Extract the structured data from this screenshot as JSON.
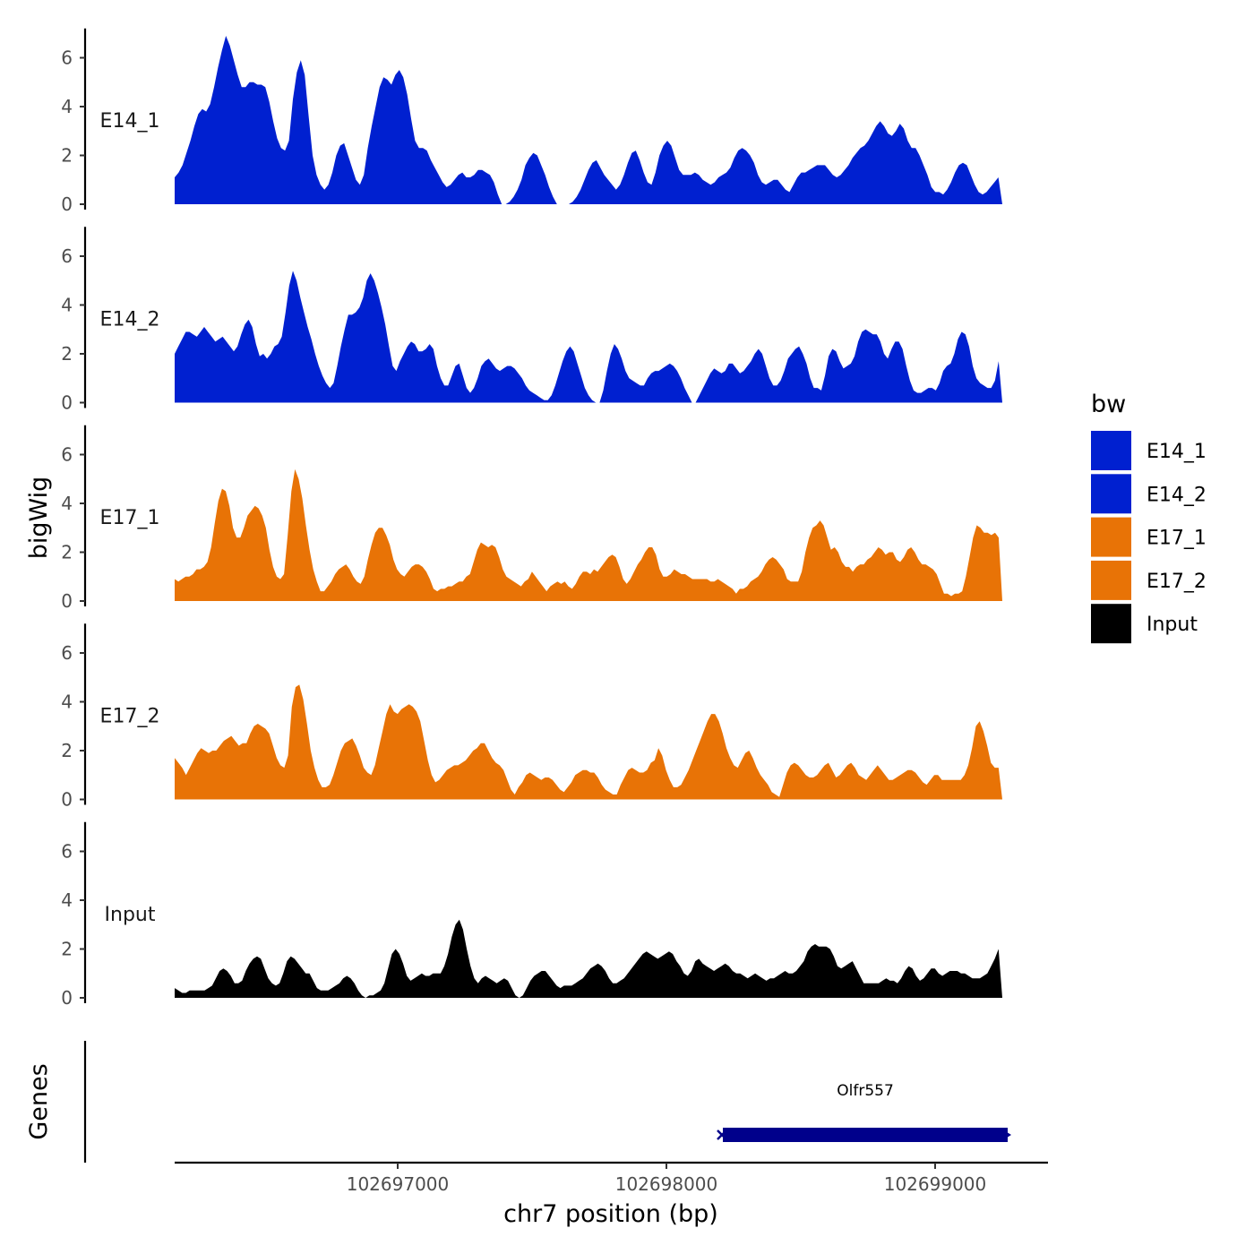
{
  "chart_data": {
    "type": "area",
    "ylabel": "bigWig",
    "xlabel": "chr7 position (bp)",
    "ylim": [
      0,
      7.2
    ],
    "y_ticks": [
      0,
      2,
      4,
      6
    ],
    "xlim": [
      102696170,
      102699420
    ],
    "x_range_data": [
      102696170,
      102699250
    ],
    "x_ticks": [
      102697000,
      102698000,
      102699000
    ],
    "x_tick_labels": [
      "102697000",
      "102698000",
      "102699000"
    ],
    "tracks": [
      {
        "name": "E14_1",
        "label": "E14_1",
        "color": "#0020D0",
        "values": [
          1.1,
          1.3,
          1.6,
          2.1,
          2.6,
          3.2,
          3.7,
          3.9,
          3.8,
          4.1,
          4.8,
          5.6,
          6.3,
          6.9,
          6.5,
          5.9,
          5.3,
          4.8,
          4.8,
          5.0,
          5.0,
          4.9,
          4.9,
          4.8,
          4.2,
          3.4,
          2.7,
          2.3,
          2.2,
          2.6,
          4.3,
          5.4,
          5.9,
          5.3,
          3.6,
          2.0,
          1.2,
          0.8,
          0.6,
          0.8,
          1.3,
          2.0,
          2.4,
          2.5,
          2.0,
          1.5,
          1.0,
          0.8,
          1.2,
          2.3,
          3.2,
          4.0,
          4.8,
          5.2,
          5.1,
          4.9,
          5.3,
          5.5,
          5.2,
          4.5,
          3.5,
          2.6,
          2.3,
          2.3,
          2.2,
          1.8,
          1.5,
          1.2,
          0.9,
          0.7,
          0.8,
          1.0,
          1.2,
          1.3,
          1.1,
          1.1,
          1.2,
          1.4,
          1.4,
          1.3,
          1.2,
          0.9,
          0.4,
          0.0,
          0.0,
          0.1,
          0.3,
          0.6,
          1.0,
          1.6,
          1.9,
          2.1,
          2.0,
          1.6,
          1.2,
          0.7,
          0.3,
          0.0,
          0.0,
          0.0,
          0.0,
          0.1,
          0.3,
          0.6,
          1.0,
          1.4,
          1.7,
          1.8,
          1.5,
          1.2,
          1.0,
          0.8,
          0.6,
          0.8,
          1.2,
          1.7,
          2.1,
          2.2,
          1.8,
          1.3,
          0.9,
          0.8,
          1.3,
          2.0,
          2.4,
          2.6,
          2.4,
          1.9,
          1.4,
          1.2,
          1.2,
          1.2,
          1.3,
          1.2,
          1.0,
          0.9,
          0.8,
          0.9,
          1.1,
          1.2,
          1.3,
          1.5,
          1.9,
          2.2,
          2.3,
          2.2,
          2.0,
          1.7,
          1.2,
          0.9,
          0.8,
          0.9,
          1.0,
          1.0,
          0.8,
          0.6,
          0.5,
          0.8,
          1.1,
          1.3,
          1.3,
          1.4,
          1.5,
          1.6,
          1.6,
          1.6,
          1.4,
          1.2,
          1.1,
          1.2,
          1.4,
          1.6,
          1.9,
          2.1,
          2.3,
          2.4,
          2.6,
          2.9,
          3.2,
          3.4,
          3.2,
          2.9,
          2.8,
          3.0,
          3.3,
          3.1,
          2.6,
          2.3,
          2.3,
          2.0,
          1.6,
          1.2,
          0.7,
          0.5,
          0.5,
          0.4,
          0.6,
          0.9,
          1.3,
          1.6,
          1.7,
          1.6,
          1.2,
          0.8,
          0.5,
          0.4,
          0.5,
          0.7,
          0.9,
          1.1,
          0.0
        ]
      },
      {
        "name": "E14_2",
        "label": "E14_2",
        "color": "#0020D0",
        "values": [
          2.0,
          2.3,
          2.6,
          2.9,
          2.9,
          2.8,
          2.7,
          2.9,
          3.1,
          2.9,
          2.7,
          2.5,
          2.6,
          2.7,
          2.5,
          2.3,
          2.1,
          2.3,
          2.8,
          3.2,
          3.4,
          3.1,
          2.4,
          1.9,
          2.0,
          1.8,
          2.0,
          2.3,
          2.4,
          2.7,
          3.7,
          4.8,
          5.4,
          5.0,
          4.3,
          3.7,
          3.1,
          2.6,
          2.0,
          1.5,
          1.1,
          0.8,
          0.6,
          0.8,
          1.5,
          2.3,
          3.0,
          3.6,
          3.6,
          3.7,
          3.9,
          4.3,
          5.0,
          5.3,
          5.0,
          4.5,
          3.9,
          3.2,
          2.3,
          1.5,
          1.3,
          1.7,
          2.0,
          2.3,
          2.5,
          2.4,
          2.1,
          2.1,
          2.2,
          2.4,
          2.2,
          1.5,
          1.0,
          0.7,
          0.7,
          1.1,
          1.5,
          1.6,
          1.1,
          0.6,
          0.4,
          0.6,
          1.0,
          1.5,
          1.7,
          1.8,
          1.6,
          1.4,
          1.3,
          1.4,
          1.5,
          1.5,
          1.4,
          1.2,
          1.0,
          0.7,
          0.5,
          0.4,
          0.3,
          0.2,
          0.1,
          0.1,
          0.3,
          0.7,
          1.2,
          1.7,
          2.1,
          2.3,
          2.1,
          1.6,
          1.1,
          0.6,
          0.3,
          0.1,
          0.0,
          0.0,
          0.5,
          1.3,
          2.0,
          2.4,
          2.2,
          1.8,
          1.3,
          1.0,
          0.9,
          0.8,
          0.7,
          0.7,
          1.0,
          1.2,
          1.3,
          1.3,
          1.4,
          1.5,
          1.6,
          1.5,
          1.3,
          1.0,
          0.6,
          0.3,
          0.0,
          0.0,
          0.3,
          0.6,
          0.9,
          1.2,
          1.4,
          1.3,
          1.2,
          1.3,
          1.6,
          1.6,
          1.4,
          1.2,
          1.3,
          1.5,
          1.7,
          2.0,
          2.2,
          2.0,
          1.5,
          1.0,
          0.7,
          0.7,
          0.9,
          1.3,
          1.8,
          2.0,
          2.2,
          2.3,
          2.0,
          1.6,
          1.0,
          0.6,
          0.6,
          0.5,
          1.1,
          1.9,
          2.2,
          2.1,
          1.7,
          1.4,
          1.5,
          1.6,
          1.9,
          2.5,
          2.9,
          3.0,
          2.9,
          2.8,
          2.8,
          2.5,
          2.0,
          1.8,
          2.2,
          2.5,
          2.5,
          2.2,
          1.5,
          0.9,
          0.5,
          0.4,
          0.4,
          0.5,
          0.6,
          0.6,
          0.5,
          0.8,
          1.3,
          1.5,
          1.6,
          2.0,
          2.6,
          2.9,
          2.8,
          2.3,
          1.5,
          1.0,
          0.8,
          0.7,
          0.6,
          0.6,
          0.9,
          1.7,
          0.0
        ]
      },
      {
        "name": "E17_1",
        "label": "E17_1",
        "color": "#E87306",
        "values": [
          0.9,
          0.8,
          0.9,
          1.0,
          1.0,
          1.1,
          1.3,
          1.3,
          1.4,
          1.6,
          2.2,
          3.2,
          4.1,
          4.6,
          4.5,
          3.9,
          3.0,
          2.6,
          2.6,
          3.0,
          3.5,
          3.7,
          3.9,
          3.8,
          3.5,
          3.0,
          2.1,
          1.4,
          1.0,
          0.9,
          1.1,
          2.7,
          4.5,
          5.4,
          5.0,
          4.2,
          3.1,
          2.1,
          1.3,
          0.8,
          0.4,
          0.4,
          0.6,
          0.8,
          1.1,
          1.3,
          1.4,
          1.5,
          1.3,
          1.0,
          0.8,
          0.7,
          1.0,
          1.7,
          2.3,
          2.8,
          3.0,
          3.0,
          2.7,
          2.3,
          1.7,
          1.3,
          1.1,
          1.0,
          1.2,
          1.4,
          1.5,
          1.5,
          1.4,
          1.2,
          0.9,
          0.5,
          0.4,
          0.5,
          0.5,
          0.6,
          0.6,
          0.7,
          0.8,
          0.8,
          1.0,
          1.1,
          1.6,
          2.1,
          2.4,
          2.3,
          2.2,
          2.3,
          2.2,
          1.8,
          1.3,
          1.0,
          0.9,
          0.8,
          0.7,
          0.6,
          0.8,
          0.9,
          1.2,
          1.0,
          0.8,
          0.6,
          0.4,
          0.6,
          0.7,
          0.8,
          0.7,
          0.8,
          0.6,
          0.5,
          0.7,
          1.0,
          1.2,
          1.2,
          1.1,
          1.3,
          1.2,
          1.4,
          1.6,
          1.8,
          1.9,
          1.8,
          1.4,
          0.9,
          0.7,
          0.9,
          1.2,
          1.5,
          1.7,
          2.0,
          2.2,
          2.2,
          1.9,
          1.3,
          1.0,
          1.0,
          1.1,
          1.3,
          1.2,
          1.1,
          1.1,
          1.0,
          0.9,
          0.9,
          0.9,
          0.9,
          0.9,
          0.8,
          0.8,
          0.9,
          0.8,
          0.7,
          0.6,
          0.5,
          0.3,
          0.5,
          0.5,
          0.6,
          0.8,
          0.9,
          1.0,
          1.2,
          1.5,
          1.7,
          1.8,
          1.7,
          1.5,
          1.3,
          0.9,
          0.8,
          0.8,
          0.8,
          1.2,
          2.0,
          2.6,
          3.0,
          3.1,
          3.3,
          3.1,
          2.6,
          2.1,
          2.2,
          2.0,
          1.6,
          1.4,
          1.4,
          1.2,
          1.4,
          1.5,
          1.5,
          1.7,
          1.8,
          2.0,
          2.2,
          2.1,
          1.9,
          2.0,
          2.0,
          1.7,
          1.6,
          1.8,
          2.1,
          2.2,
          2.0,
          1.7,
          1.5,
          1.5,
          1.4,
          1.3,
          1.1,
          0.7,
          0.3,
          0.3,
          0.2,
          0.3,
          0.3,
          0.4,
          1.0,
          1.8,
          2.6,
          3.1,
          3.0,
          2.8,
          2.8,
          2.7,
          2.8,
          2.6,
          0.0
        ]
      },
      {
        "name": "E17_2",
        "label": "E17_2",
        "color": "#E87306",
        "values": [
          1.7,
          1.5,
          1.3,
          1.0,
          1.3,
          1.6,
          1.9,
          2.1,
          2.0,
          1.9,
          2.0,
          2.0,
          2.2,
          2.4,
          2.5,
          2.6,
          2.4,
          2.2,
          2.3,
          2.3,
          2.7,
          3.0,
          3.1,
          3.0,
          2.9,
          2.7,
          2.2,
          1.7,
          1.4,
          1.3,
          1.8,
          3.8,
          4.6,
          4.7,
          4.1,
          3.1,
          2.0,
          1.3,
          0.8,
          0.5,
          0.5,
          0.6,
          1.0,
          1.5,
          2.0,
          2.3,
          2.4,
          2.5,
          2.2,
          1.8,
          1.3,
          1.1,
          1.0,
          1.4,
          2.1,
          2.8,
          3.5,
          3.9,
          3.6,
          3.5,
          3.7,
          3.8,
          3.9,
          3.8,
          3.6,
          3.2,
          2.4,
          1.6,
          1.0,
          0.7,
          0.8,
          1.0,
          1.2,
          1.3,
          1.4,
          1.4,
          1.5,
          1.6,
          1.8,
          2.0,
          2.1,
          2.3,
          2.3,
          2.0,
          1.7,
          1.5,
          1.4,
          1.2,
          0.8,
          0.4,
          0.2,
          0.5,
          0.7,
          1.0,
          1.1,
          1.0,
          0.9,
          0.8,
          0.9,
          0.9,
          0.8,
          0.6,
          0.4,
          0.3,
          0.5,
          0.7,
          1.0,
          1.1,
          1.2,
          1.2,
          1.1,
          1.1,
          0.9,
          0.6,
          0.4,
          0.3,
          0.2,
          0.2,
          0.6,
          0.9,
          1.2,
          1.3,
          1.2,
          1.1,
          1.1,
          1.2,
          1.5,
          1.6,
          2.1,
          1.8,
          1.2,
          0.8,
          0.5,
          0.5,
          0.6,
          0.9,
          1.2,
          1.6,
          2.0,
          2.4,
          2.8,
          3.2,
          3.5,
          3.5,
          3.2,
          2.7,
          2.1,
          1.7,
          1.4,
          1.3,
          1.6,
          1.9,
          2.0,
          1.7,
          1.3,
          1.0,
          0.8,
          0.6,
          0.3,
          0.2,
          0.1,
          0.6,
          1.1,
          1.4,
          1.5,
          1.4,
          1.2,
          1.0,
          0.9,
          0.9,
          1.0,
          1.2,
          1.4,
          1.5,
          1.2,
          0.9,
          1.0,
          1.2,
          1.4,
          1.5,
          1.3,
          1.0,
          0.9,
          0.8,
          1.0,
          1.2,
          1.4,
          1.2,
          1.0,
          0.8,
          0.8,
          0.9,
          1.0,
          1.1,
          1.2,
          1.2,
          1.1,
          0.9,
          0.7,
          0.6,
          0.8,
          1.0,
          1.0,
          0.8,
          0.8,
          0.8,
          0.8,
          0.8,
          0.8,
          1.0,
          1.4,
          2.1,
          3.0,
          3.2,
          2.8,
          2.2,
          1.5,
          1.3,
          1.3,
          0.0
        ]
      },
      {
        "name": "Input",
        "label": "Input",
        "color": "#000000",
        "values": [
          0.4,
          0.3,
          0.2,
          0.2,
          0.3,
          0.3,
          0.3,
          0.3,
          0.3,
          0.4,
          0.5,
          0.8,
          1.1,
          1.2,
          1.1,
          0.9,
          0.6,
          0.6,
          0.7,
          1.1,
          1.4,
          1.6,
          1.7,
          1.6,
          1.2,
          0.8,
          0.6,
          0.5,
          0.6,
          1.0,
          1.5,
          1.7,
          1.6,
          1.4,
          1.2,
          1.0,
          1.0,
          0.7,
          0.4,
          0.3,
          0.3,
          0.3,
          0.4,
          0.5,
          0.6,
          0.8,
          0.9,
          0.8,
          0.6,
          0.3,
          0.1,
          0.0,
          0.1,
          0.1,
          0.2,
          0.3,
          0.6,
          1.2,
          1.8,
          2.0,
          1.8,
          1.4,
          0.9,
          0.7,
          0.8,
          0.9,
          1.0,
          0.9,
          0.9,
          1.0,
          1.0,
          1.0,
          1.3,
          1.8,
          2.5,
          3.0,
          3.2,
          2.8,
          2.0,
          1.3,
          0.8,
          0.6,
          0.8,
          0.9,
          0.8,
          0.7,
          0.6,
          0.7,
          0.8,
          0.7,
          0.4,
          0.1,
          0.0,
          0.1,
          0.4,
          0.7,
          0.9,
          1.0,
          1.1,
          1.1,
          0.9,
          0.7,
          0.5,
          0.4,
          0.5,
          0.5,
          0.5,
          0.6,
          0.7,
          0.8,
          1.0,
          1.2,
          1.3,
          1.4,
          1.3,
          1.1,
          0.8,
          0.6,
          0.6,
          0.7,
          0.8,
          1.0,
          1.2,
          1.4,
          1.6,
          1.8,
          1.9,
          1.8,
          1.7,
          1.6,
          1.7,
          1.8,
          1.9,
          1.8,
          1.5,
          1.3,
          1.0,
          0.9,
          1.1,
          1.5,
          1.6,
          1.4,
          1.3,
          1.2,
          1.1,
          1.2,
          1.3,
          1.4,
          1.3,
          1.1,
          1.0,
          1.0,
          0.9,
          0.8,
          0.9,
          1.0,
          0.9,
          0.8,
          0.7,
          0.8,
          0.8,
          0.9,
          1.0,
          1.1,
          1.0,
          1.0,
          1.1,
          1.3,
          1.5,
          1.9,
          2.1,
          2.2,
          2.1,
          2.1,
          2.1,
          2.0,
          1.7,
          1.3,
          1.2,
          1.3,
          1.4,
          1.5,
          1.2,
          0.9,
          0.6,
          0.6,
          0.6,
          0.6,
          0.6,
          0.7,
          0.8,
          0.7,
          0.7,
          0.6,
          0.8,
          1.1,
          1.3,
          1.2,
          0.9,
          0.7,
          0.8,
          1.0,
          1.2,
          1.2,
          1.0,
          0.9,
          1.0,
          1.1,
          1.1,
          1.1,
          1.0,
          1.0,
          0.9,
          0.8,
          0.8,
          0.8,
          0.9,
          1.0,
          1.3,
          1.6,
          2.0,
          0.0
        ]
      }
    ],
    "genes": [
      {
        "name": "Olfr557",
        "start": 102698210,
        "end": 102699270,
        "strand": "+",
        "color": "#00008B"
      }
    ],
    "genes_track_label": "Genes",
    "legend": {
      "title": "bw",
      "placement": "right",
      "entries": [
        {
          "label": "E14_1",
          "color": "#0020D0"
        },
        {
          "label": "E14_2",
          "color": "#0020D0"
        },
        {
          "label": "E17_1",
          "color": "#E87306"
        },
        {
          "label": "E17_2",
          "color": "#E87306"
        },
        {
          "label": "Input",
          "color": "#000000"
        }
      ]
    }
  }
}
